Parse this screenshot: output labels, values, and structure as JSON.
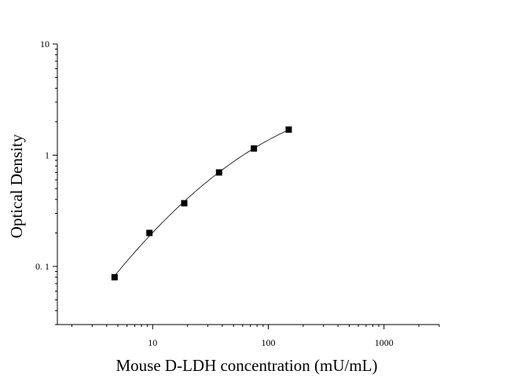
{
  "chart_data": {
    "type": "scatter",
    "title": "",
    "xlabel": "Mouse D-LDH concentration (mU/mL)",
    "ylabel": "Optical Density",
    "xscale": "log",
    "yscale": "log",
    "xlim": [
      1.5,
      3000
    ],
    "ylim": [
      0.03,
      10
    ],
    "x_ticks": [
      {
        "value": 10,
        "label": "10"
      },
      {
        "value": 100,
        "label": "100"
      },
      {
        "value": 1000,
        "label": "1000"
      }
    ],
    "y_ticks": [
      {
        "value": 0.1,
        "label": "0. 1"
      },
      {
        "value": 1,
        "label": "1"
      },
      {
        "value": 10,
        "label": "10"
      }
    ],
    "grid": false,
    "legend": false,
    "marker": "square",
    "fit_line": true,
    "points": [
      {
        "x": 4.6875,
        "y": 0.08
      },
      {
        "x": 9.375,
        "y": 0.2
      },
      {
        "x": 18.75,
        "y": 0.37
      },
      {
        "x": 37.5,
        "y": 0.7
      },
      {
        "x": 75,
        "y": 1.15
      },
      {
        "x": 150,
        "y": 1.7
      }
    ]
  }
}
